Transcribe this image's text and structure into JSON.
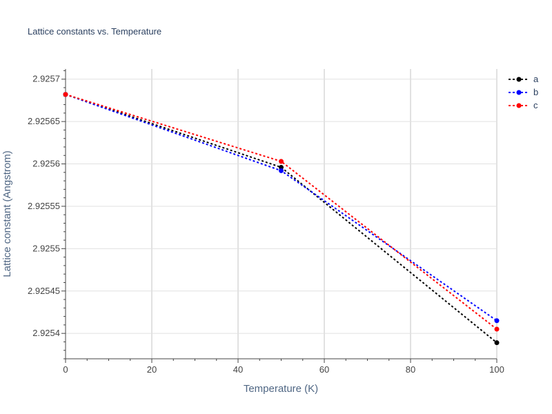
{
  "chart_data": {
    "type": "line",
    "title": "Lattice constants vs. Temperature",
    "xlabel": "Temperature (K)",
    "ylabel": "Lattice constant (Angstrom)",
    "xlim": [
      0,
      100
    ],
    "ylim": [
      2.92537,
      2.925712
    ],
    "x_ticks": [
      0,
      20,
      40,
      60,
      80,
      100
    ],
    "y_ticks": [
      2.9254,
      2.92545,
      2.9255,
      2.92555,
      2.9256,
      2.92565,
      2.9257
    ],
    "x_tick_labels": [
      "0",
      "20",
      "40",
      "60",
      "80",
      "100"
    ],
    "y_tick_labels": [
      "2.9254",
      "2.92545",
      "2.9255",
      "2.92555",
      "2.9256",
      "2.92565",
      "2.9257"
    ],
    "grid": true,
    "legend_position": "top-right",
    "line_style": "dotted",
    "x": [
      0,
      50,
      100
    ],
    "series": [
      {
        "name": "a",
        "color": "#000000",
        "values": [
          2.925682,
          2.925596,
          2.925389
        ]
      },
      {
        "name": "b",
        "color": "#0000ff",
        "values": [
          2.925682,
          2.925592,
          2.925415
        ]
      },
      {
        "name": "c",
        "color": "#ff0000",
        "values": [
          2.925682,
          2.925603,
          2.925405
        ]
      }
    ]
  }
}
